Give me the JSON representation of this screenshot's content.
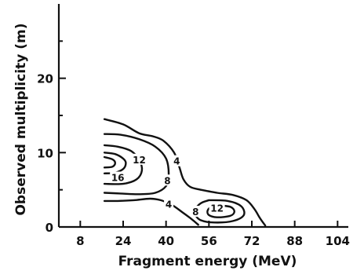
{
  "chart_data": {
    "type": "contour",
    "xlabel": "Fragment energy (MeV)",
    "ylabel": "Observed multiplicity (m)",
    "xlim": [
      0,
      108
    ],
    "ylim": [
      0,
      30
    ],
    "x_ticks": [
      8,
      24,
      40,
      56,
      72,
      88,
      104
    ],
    "y_ticks": [
      0,
      10,
      20
    ],
    "grid": false,
    "contours": [
      {
        "level": 4,
        "label": "4",
        "points": [
          [
            17,
            14.5
          ],
          [
            24,
            13.8
          ],
          [
            30,
            12.6
          ],
          [
            35,
            12.2
          ],
          [
            39,
            11.6
          ],
          [
            43,
            10.0
          ],
          [
            45,
            8.0
          ],
          [
            46.5,
            6.4
          ],
          [
            49,
            5.4
          ],
          [
            53,
            5.0
          ],
          [
            59,
            4.6
          ],
          [
            65,
            4.3
          ],
          [
            70,
            3.6
          ],
          [
            73,
            2.4
          ],
          [
            75,
            1.2
          ],
          [
            77,
            0.2
          ]
        ],
        "label_at": [
          44,
          8.8
        ]
      },
      {
        "level": 4,
        "label": "4",
        "points": [
          [
            17,
            3.5
          ],
          [
            22,
            3.5
          ],
          [
            28,
            3.6
          ],
          [
            34,
            3.8
          ],
          [
            38,
            3.6
          ],
          [
            42,
            3.0
          ],
          [
            46,
            2.0
          ],
          [
            49,
            1.2
          ],
          [
            52,
            0.3
          ]
        ],
        "label_at": [
          41,
          3.0
        ]
      },
      {
        "level": 8,
        "label": "8",
        "points": [
          [
            17,
            12.5
          ],
          [
            23,
            12.4
          ],
          [
            30,
            11.8
          ],
          [
            36,
            10.8
          ],
          [
            40,
            9.2
          ],
          [
            41,
            7.0
          ],
          [
            40,
            5.5
          ],
          [
            36,
            4.6
          ],
          [
            30,
            4.4
          ],
          [
            23,
            4.5
          ],
          [
            17,
            4.6
          ]
        ],
        "label_at": [
          40.5,
          6.2
        ]
      },
      {
        "level": 8,
        "label": "8",
        "points": [
          [
            56,
            3.6
          ],
          [
            63,
            3.5
          ],
          [
            68,
            2.8
          ],
          [
            69,
            1.6
          ],
          [
            65,
            0.8
          ],
          [
            58,
            0.6
          ],
          [
            53,
            0.9
          ],
          [
            51,
            1.6
          ],
          [
            51,
            2.4
          ],
          [
            53,
            3.2
          ],
          [
            56,
            3.6
          ]
        ],
        "label_at": [
          51,
          2.0
        ]
      },
      {
        "level": 12,
        "label": "12",
        "points": [
          [
            17,
            11.0
          ],
          [
            22,
            10.8
          ],
          [
            27,
            10.2
          ],
          [
            30,
            9.0
          ],
          [
            31,
            7.6
          ],
          [
            29,
            6.4
          ],
          [
            24,
            5.8
          ],
          [
            17,
            5.8
          ]
        ],
        "label_at": [
          30,
          9.0
        ]
      },
      {
        "level": 12,
        "label": "12",
        "points": [
          [
            60,
            2.9
          ],
          [
            64,
            2.7
          ],
          [
            65.5,
            2.1
          ],
          [
            64,
            1.5
          ],
          [
            59,
            1.3
          ],
          [
            56,
            1.6
          ],
          [
            55.5,
            2.2
          ],
          [
            57,
            2.7
          ],
          [
            60,
            2.9
          ]
        ],
        "label_at": [
          59,
          2.5
        ]
      },
      {
        "level": 16,
        "label": "16",
        "points": [
          [
            17,
            10.0
          ],
          [
            21,
            9.8
          ],
          [
            24,
            9.2
          ],
          [
            25,
            8.6
          ],
          [
            24,
            7.8
          ],
          [
            21,
            7.3
          ],
          [
            17,
            7.2
          ]
        ],
        "label_at": [
          22,
          6.6
        ]
      },
      {
        "level": 16,
        "label": "",
        "points": [
          [
            17,
            9.4
          ],
          [
            20,
            9.1
          ],
          [
            21,
            8.6
          ],
          [
            20,
            8.1
          ],
          [
            17,
            8.0
          ]
        ],
        "label_at": null
      }
    ]
  }
}
